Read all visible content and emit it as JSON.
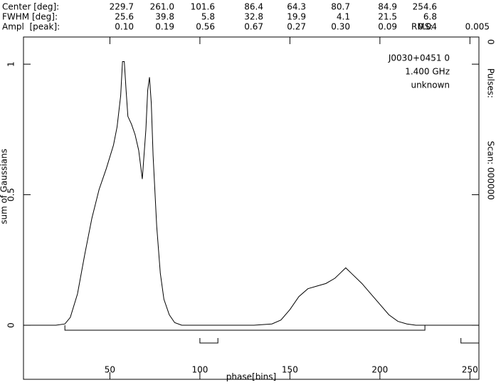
{
  "header": {
    "rows": [
      {
        "label": "Center [deg]:",
        "cells": [
          "229.7",
          "261.0",
          "101.6",
          "86.4",
          "64.3",
          "80.7",
          "84.9",
          "254.6"
        ]
      },
      {
        "label": "FWHM [deg]:",
        "cells": [
          "25.6",
          "39.8",
          "5.8",
          "32.8",
          "19.9",
          "4.1",
          "21.5",
          "6.8"
        ]
      },
      {
        "label": "Ampl  [peak]:",
        "cells": [
          "0.10",
          "0.19",
          "0.56",
          "0.67",
          "0.27",
          "0.30",
          "0.09",
          "0.04"
        ]
      }
    ],
    "rms_label": "RMS:",
    "rms_value": "0.005"
  },
  "side": {
    "count": "0",
    "pulses": "Pulses:",
    "scan": "Scan: 000000"
  },
  "chart_data": {
    "type": "line",
    "color": "#000000",
    "xlabel": "phase[bins]",
    "ylabel": "sum of Gaussians",
    "annotations": [
      "J0030+0451 0",
      "1.400 GHz",
      "unknown"
    ],
    "xlim": [
      2,
      255
    ],
    "ylim": [
      -0.207,
      1.104
    ],
    "xticks": [
      50,
      100,
      150,
      200,
      250
    ],
    "yticks": [
      0,
      0.5,
      1
    ],
    "x": [
      2,
      20,
      25,
      28,
      32,
      36,
      40,
      44,
      48,
      52,
      54,
      56,
      57,
      58,
      59,
      60,
      62,
      64,
      66,
      68,
      70,
      71,
      72,
      73,
      74,
      76,
      78,
      80,
      83,
      86,
      90,
      130,
      140,
      145,
      150,
      155,
      160,
      165,
      170,
      175,
      178,
      181,
      184,
      190,
      195,
      200,
      205,
      210,
      215,
      220,
      255
    ],
    "values": [
      0,
      0,
      0.005,
      0.03,
      0.12,
      0.27,
      0.41,
      0.52,
      0.6,
      0.69,
      0.76,
      0.88,
      1.01,
      1.01,
      0.9,
      0.8,
      0.77,
      0.73,
      0.67,
      0.56,
      0.75,
      0.9,
      0.95,
      0.85,
      0.65,
      0.38,
      0.2,
      0.1,
      0.04,
      0.01,
      0,
      0,
      0.005,
      0.02,
      0.06,
      0.11,
      0.14,
      0.15,
      0.16,
      0.18,
      0.2,
      0.22,
      0.2,
      0.16,
      0.12,
      0.08,
      0.04,
      0.015,
      0.005,
      0,
      0
    ],
    "windows": [
      [
        25,
        225
      ],
      [
        100,
        110
      ],
      [
        245,
        255
      ]
    ]
  }
}
